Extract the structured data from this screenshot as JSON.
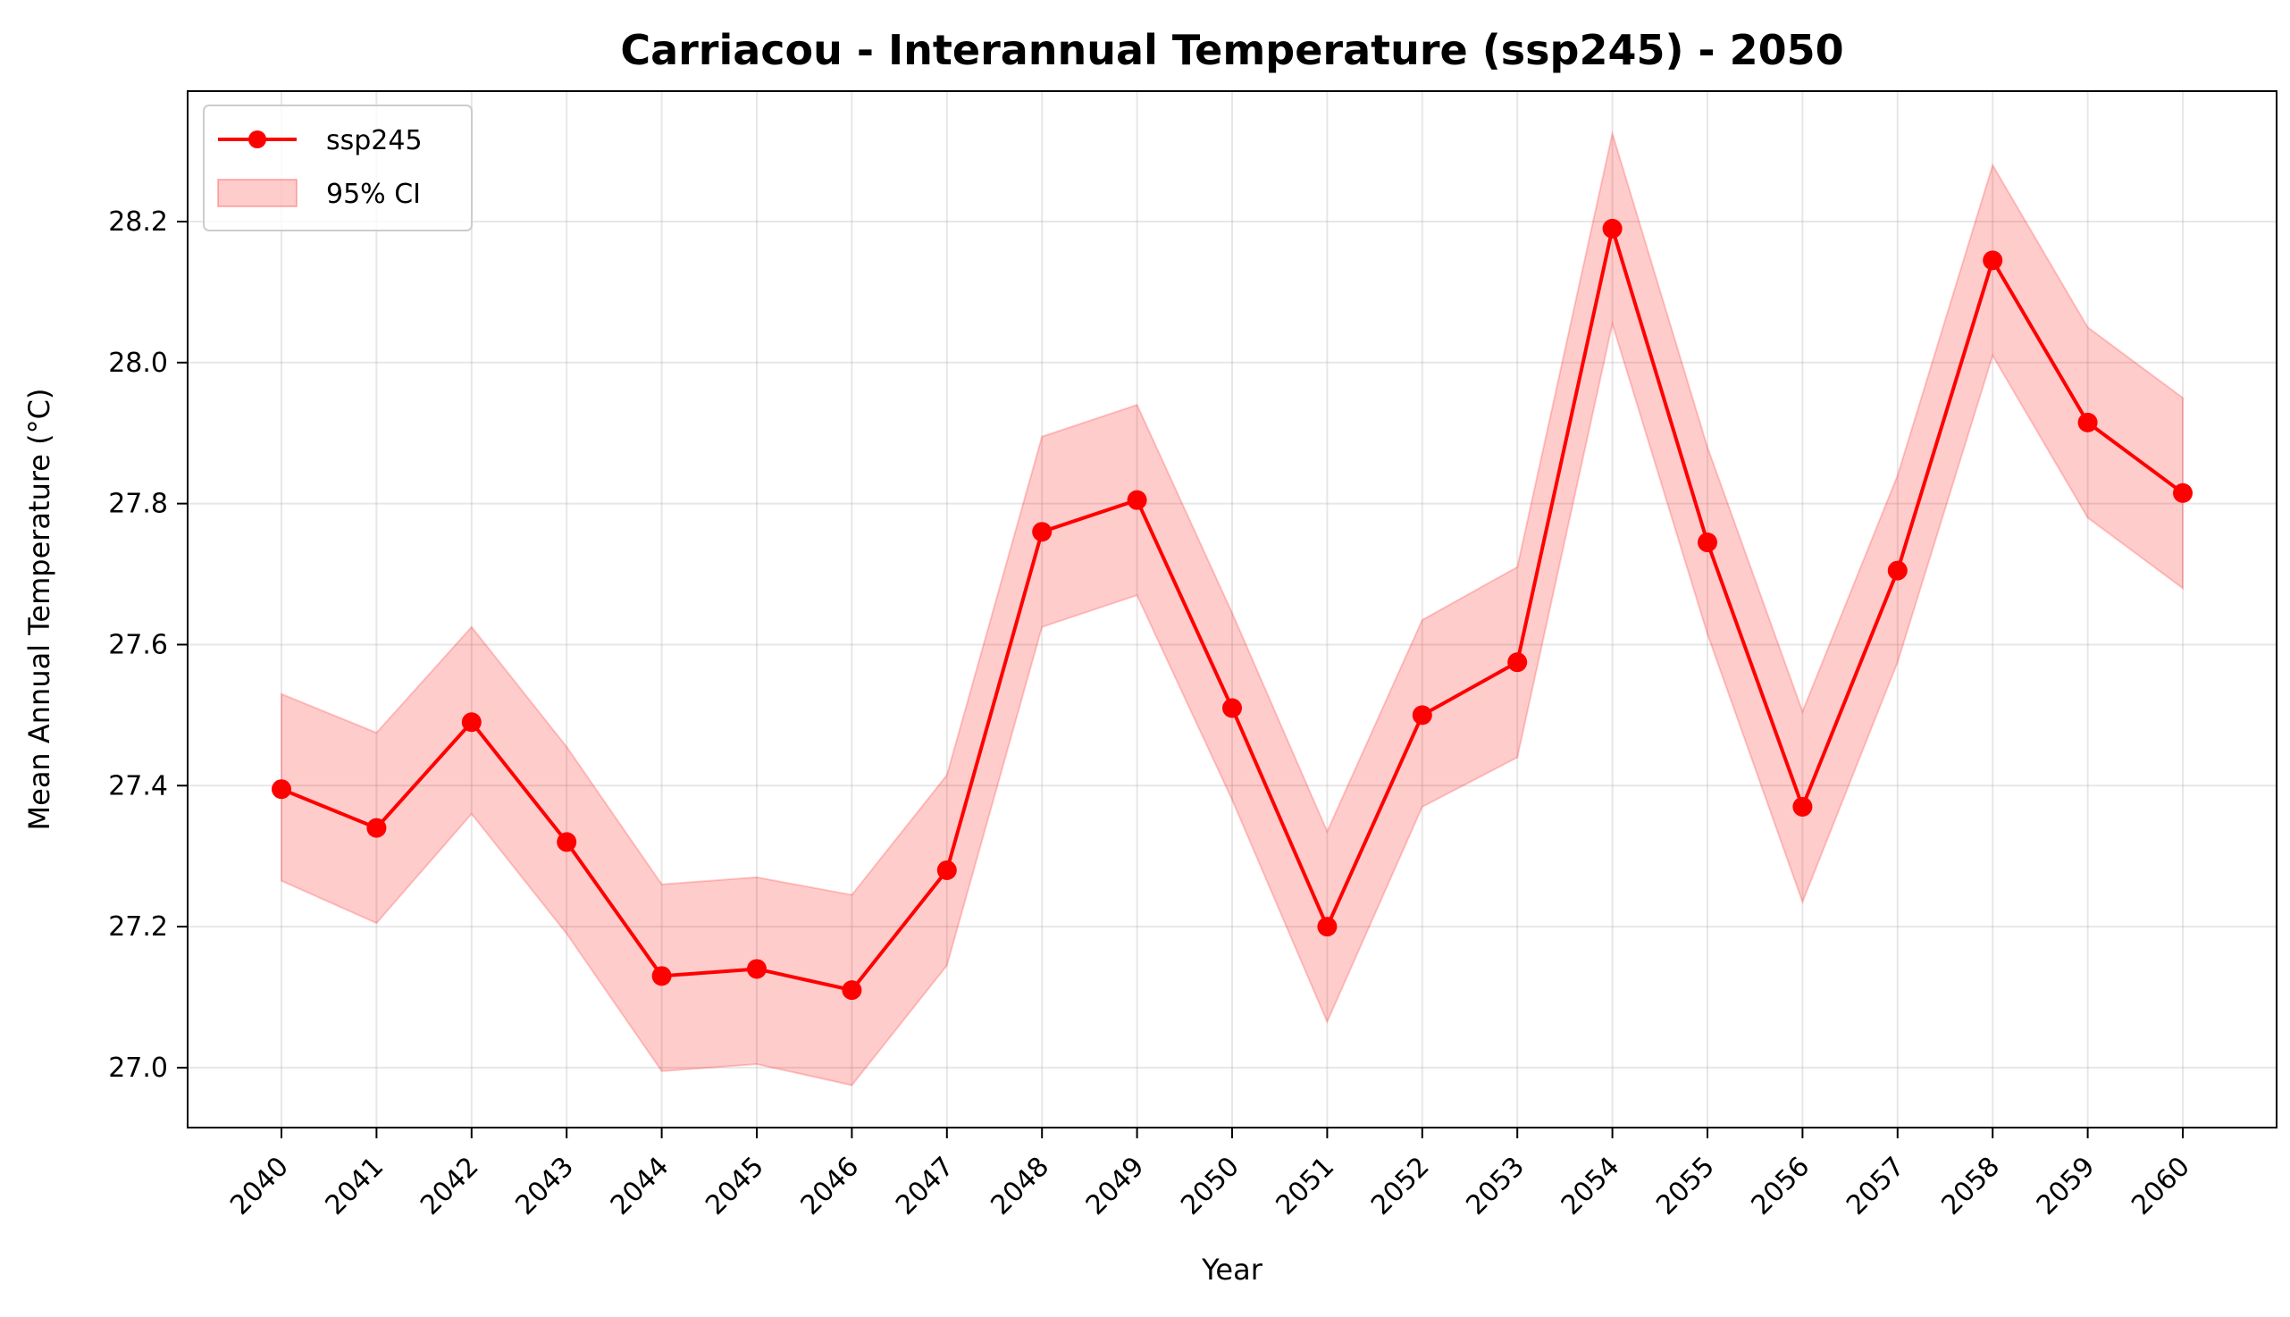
{
  "chart_data": {
    "type": "line",
    "title": "Carriacou - Interannual Temperature (ssp245) - 2050",
    "xlabel": "Year",
    "ylabel": "Mean Annual Temperature (°C)",
    "x": [
      "2040",
      "2041",
      "2042",
      "2043",
      "2044",
      "2045",
      "2046",
      "2047",
      "2048",
      "2049",
      "2050",
      "2051",
      "2052",
      "2053",
      "2054",
      "2055",
      "2056",
      "2057",
      "2058",
      "2059",
      "2060"
    ],
    "series": [
      {
        "name": "ssp245",
        "color": "#ff0000",
        "values": [
          27.395,
          27.34,
          27.49,
          27.32,
          27.13,
          27.14,
          27.11,
          27.28,
          27.76,
          27.805,
          27.51,
          27.2,
          27.5,
          27.575,
          28.19,
          27.745,
          27.37,
          27.705,
          28.145,
          27.915,
          27.815
        ],
        "ci_lower": [
          27.265,
          27.205,
          27.36,
          27.19,
          26.995,
          27.005,
          26.975,
          27.145,
          27.625,
          27.67,
          27.38,
          27.065,
          27.37,
          27.44,
          28.055,
          27.615,
          27.235,
          27.575,
          28.01,
          27.78,
          27.68
        ],
        "ci_upper": [
          27.53,
          27.475,
          27.625,
          27.455,
          27.26,
          27.27,
          27.245,
          27.415,
          27.895,
          27.94,
          27.645,
          27.335,
          27.635,
          27.71,
          28.325,
          27.88,
          27.505,
          27.84,
          28.28,
          28.05,
          27.95
        ]
      }
    ],
    "ci_name": "95% CI",
    "ci_color": "#ff0000",
    "ylim": [
      26.915,
      28.385
    ],
    "yticks": [
      "27.0",
      "27.2",
      "27.4",
      "27.6",
      "27.8",
      "28.0",
      "28.2"
    ],
    "grid": true,
    "legend_position": "top-left"
  }
}
